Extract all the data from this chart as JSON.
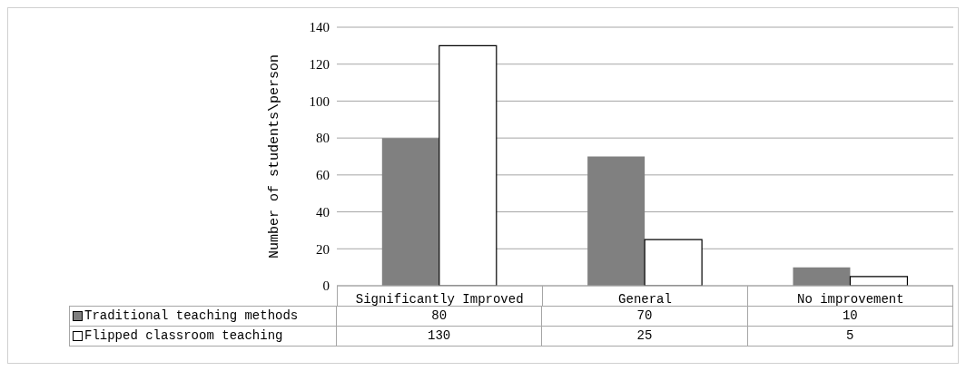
{
  "chart_data": {
    "type": "bar",
    "ylabel": "Number of students\\person",
    "categories": [
      "Significantly Improved",
      "General",
      "No improvement"
    ],
    "series": [
      {
        "name": "Traditional teaching methods",
        "color": "#808080",
        "values": [
          80,
          70,
          10
        ]
      },
      {
        "name": "Flipped classroom teaching",
        "color": "#ffffff",
        "values": [
          130,
          25,
          5
        ]
      }
    ],
    "ylim": [
      0,
      140
    ],
    "yticks": [
      0,
      20,
      40,
      60,
      80,
      100,
      120,
      140
    ],
    "grid": "y",
    "legend": "bottom",
    "data_labels": true
  }
}
